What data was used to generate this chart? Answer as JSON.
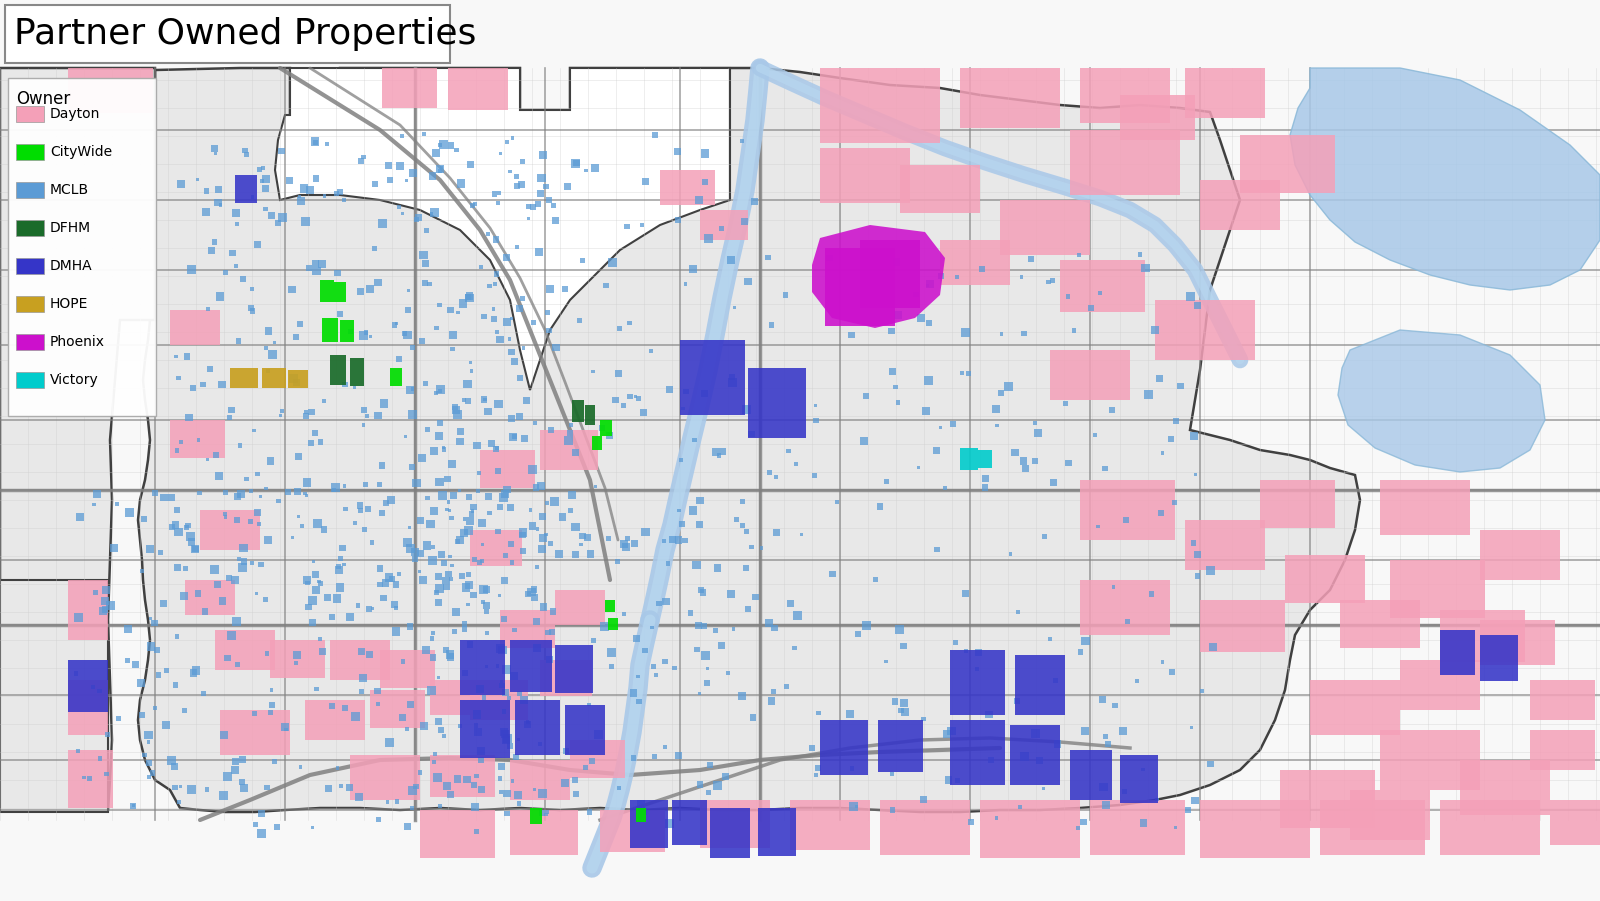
{
  "title": "Partner Owned Properties",
  "title_fontsize": 26,
  "bg_color": "#f0f0f0",
  "map_bg": "#e8e8e8",
  "inner_bg": "#efefef",
  "legend_title": "Owner",
  "legend_entries": [
    {
      "label": "Dayton",
      "color": "#F4A0B8"
    },
    {
      "label": "CityWide",
      "color": "#00DD00"
    },
    {
      "label": "MCLB",
      "color": "#5B9BD5"
    },
    {
      "label": "DFHM",
      "color": "#1A6B2A"
    },
    {
      "label": "DMHA",
      "color": "#3535C8"
    },
    {
      "label": "HOPE",
      "color": "#C8A020"
    },
    {
      "label": "Phoenix",
      "color": "#CC10CC"
    },
    {
      "label": "Victory",
      "color": "#00CCCC"
    }
  ],
  "road_color_major": "#808080",
  "road_color_minor": "#b0b0b0",
  "river_color": "#A8C8E8",
  "border_color": "#404040",
  "figsize": [
    16.0,
    9.01
  ],
  "dpi": 100,
  "seed": 42
}
